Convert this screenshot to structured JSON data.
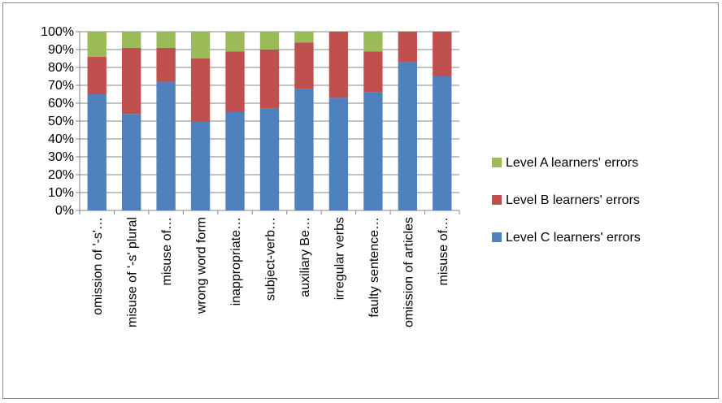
{
  "chart_data": {
    "type": "bar",
    "stacked": true,
    "percent": true,
    "categories": [
      "omission of '-s'…",
      "misuse of '-s' plural",
      "misuse of…",
      "wrong word form",
      "inappropriate…",
      "subject-verb…",
      "auxiliary Be…",
      "irregular verbs",
      "faulty sentence…",
      "omission of articles",
      "misuse of…"
    ],
    "series": [
      {
        "name": "Level C learners' errors",
        "color": "#4f81bd",
        "values": [
          65,
          54,
          72,
          50,
          55,
          57,
          68,
          63,
          66,
          83,
          75
        ]
      },
      {
        "name": "Level B learners' errors",
        "color": "#c0504d",
        "values": [
          21,
          37,
          19,
          35,
          34,
          33,
          26,
          37,
          23,
          17,
          25
        ]
      },
      {
        "name": "Level A learners' errors",
        "color": "#9bbb59",
        "values": [
          14,
          9,
          9,
          15,
          11,
          10,
          6,
          0,
          11,
          0,
          0
        ]
      }
    ],
    "y_ticks": [
      "0%",
      "10%",
      "20%",
      "30%",
      "40%",
      "50%",
      "60%",
      "70%",
      "80%",
      "90%",
      "100%"
    ],
    "ylim": [
      0,
      100
    ],
    "grid": true,
    "legend_position": "right",
    "legend_order": [
      "Level A learners' errors",
      "Level B learners' errors",
      "Level C learners' errors"
    ],
    "title": "",
    "xlabel": "",
    "ylabel": ""
  }
}
